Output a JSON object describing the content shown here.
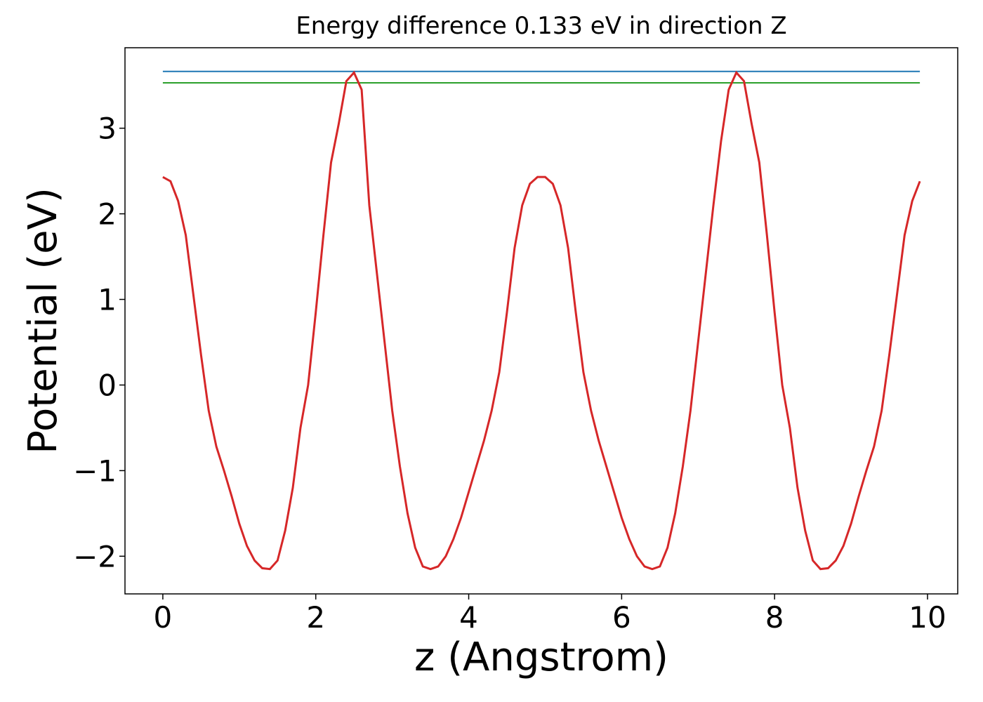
{
  "chart_data": {
    "type": "line",
    "title": "Energy difference 0.133 eV in direction Z",
    "xlabel": "z (Angstrom)",
    "ylabel": "Potential (eV)",
    "x": [
      0.0,
      0.1,
      0.2,
      0.3,
      0.4,
      0.5,
      0.6,
      0.7,
      0.8,
      0.9,
      1.0,
      1.1,
      1.2,
      1.3,
      1.4,
      1.5,
      1.6,
      1.7,
      1.8,
      1.9,
      2.0,
      2.1,
      2.2,
      2.3,
      2.4,
      2.5,
      2.6,
      2.7,
      2.8,
      2.9,
      3.0,
      3.1,
      3.2,
      3.3,
      3.4,
      3.5,
      3.6,
      3.7,
      3.8,
      3.9,
      4.0,
      4.1,
      4.2,
      4.3,
      4.4,
      4.5,
      4.6,
      4.7,
      4.8,
      4.9,
      5.0,
      5.1,
      5.2,
      5.3,
      5.4,
      5.5,
      5.6,
      5.7,
      5.8,
      5.9,
      6.0,
      6.1,
      6.2,
      6.3,
      6.4,
      6.5,
      6.6,
      6.7,
      6.8,
      6.9,
      7.0,
      7.1,
      7.2,
      7.3,
      7.4,
      7.5,
      7.6,
      7.7,
      7.8,
      7.9,
      8.0,
      8.1,
      8.2,
      8.3,
      8.4,
      8.5,
      8.6,
      8.7,
      8.8,
      8.9,
      9.0,
      9.1,
      9.2,
      9.3,
      9.4,
      9.5,
      9.6,
      9.7,
      9.8,
      9.9
    ],
    "series": [
      {
        "color": "#d62728",
        "values": [
          2.43,
          2.38,
          2.15,
          1.75,
          1.05,
          0.35,
          -0.3,
          -0.72,
          -1.0,
          -1.3,
          -1.62,
          -1.88,
          -2.05,
          -2.14,
          -2.15,
          -2.05,
          -1.7,
          -1.2,
          -0.5,
          0.0,
          0.85,
          1.75,
          2.6,
          3.05,
          3.55,
          3.65,
          3.45,
          2.1,
          1.3,
          0.5,
          -0.3,
          -0.95,
          -1.5,
          -1.9,
          -2.12,
          -2.15,
          -2.12,
          -2.0,
          -1.8,
          -1.55,
          -1.25,
          -0.95,
          -0.65,
          -0.3,
          0.15,
          0.85,
          1.6,
          2.1,
          2.35,
          2.43,
          2.43,
          2.35,
          2.1,
          1.6,
          0.85,
          0.15,
          -0.3,
          -0.65,
          -0.95,
          -1.25,
          -1.55,
          -1.8,
          -2.0,
          -2.12,
          -2.15,
          -2.12,
          -1.9,
          -1.5,
          -0.95,
          -0.3,
          0.5,
          1.3,
          2.1,
          2.85,
          3.45,
          3.65,
          3.55,
          3.05,
          2.6,
          1.75,
          0.85,
          0.0,
          -0.5,
          -1.2,
          -1.7,
          -2.05,
          -2.15,
          -2.14,
          -2.05,
          -1.88,
          -1.62,
          -1.3,
          -1.0,
          -0.72,
          -0.3,
          0.35,
          1.05,
          1.75,
          2.15,
          2.38
        ]
      }
    ],
    "hlines": [
      {
        "y": 3.663,
        "color": "#1f77b4",
        "xmin": 0,
        "xmax": 9.9
      },
      {
        "y": 3.53,
        "color": "#2ca02c",
        "xmin": 0,
        "xmax": 9.9
      }
    ],
    "xlim": [
      -0.495,
      10.395
    ],
    "ylim": [
      -2.44,
      3.94
    ],
    "xticks": [
      0,
      2,
      4,
      6,
      8,
      10
    ],
    "yticks": [
      {
        "value": -2,
        "label": "−2"
      },
      {
        "value": -1,
        "label": "−1"
      },
      0,
      1,
      2,
      3
    ]
  }
}
